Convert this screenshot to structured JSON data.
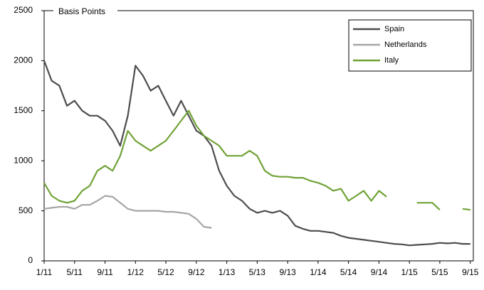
{
  "chart_data": {
    "type": "line",
    "y_label": "Basis Points",
    "x": [
      2011,
      2011.083,
      2011.167,
      2011.25,
      2011.333,
      2011.417,
      2011.5,
      2011.583,
      2011.667,
      2011.75,
      2011.833,
      2011.917,
      2012,
      2012.083,
      2012.167,
      2012.25,
      2012.333,
      2012.417,
      2012.5,
      2012.583,
      2012.667,
      2012.75,
      2012.833,
      2012.917,
      2013,
      2013.083,
      2013.167,
      2013.25,
      2013.333,
      2013.417,
      2013.5,
      2013.583,
      2013.667,
      2013.75,
      2013.833,
      2013.917,
      2014,
      2014.083,
      2014.167,
      2014.25,
      2014.333,
      2014.417,
      2014.5,
      2014.583,
      2014.667,
      2014.75,
      2014.833,
      2014.917,
      2015,
      2015.083,
      2015.167,
      2015.25,
      2015.333,
      2015.417,
      2015.5,
      2015.583,
      2015.667
    ],
    "series": [
      {
        "name": "Spain",
        "color": "#4d4d4d",
        "values": [
          2000,
          1800,
          1750,
          1550,
          1600,
          1500,
          1450,
          1450,
          1400,
          1300,
          1150,
          1450,
          1950,
          1850,
          1700,
          1750,
          1600,
          1450,
          1600,
          1450,
          1300,
          1250,
          1150,
          900,
          750,
          650,
          600,
          520,
          480,
          500,
          480,
          500,
          450,
          350,
          320,
          300,
          300,
          290,
          280,
          250,
          230,
          220,
          210,
          200,
          190,
          180,
          170,
          165,
          155,
          160,
          165,
          170,
          180,
          175,
          180,
          170,
          170
        ]
      },
      {
        "name": "Netherlands",
        "color": "#a6a6a6",
        "values": [
          520,
          530,
          540,
          540,
          520,
          560,
          560,
          600,
          650,
          640,
          580,
          520,
          500,
          500,
          500,
          500,
          490,
          490,
          480,
          470,
          420,
          340,
          330,
          null,
          null,
          null,
          null,
          null,
          null,
          null,
          null,
          null,
          null,
          null,
          null,
          null,
          null,
          null,
          null,
          null,
          null,
          null,
          null,
          null,
          null,
          null,
          null,
          null,
          null,
          null,
          null,
          null,
          null,
          null,
          null,
          null,
          null
        ]
      },
      {
        "name": "Italy",
        "color": "#70a236",
        "values": [
          780,
          650,
          600,
          580,
          600,
          700,
          750,
          900,
          950,
          900,
          1050,
          1300,
          1200,
          1150,
          1100,
          1150,
          1200,
          1300,
          1400,
          1500,
          1350,
          1250,
          1200,
          1150,
          1050,
          1050,
          1050,
          1100,
          1050,
          900,
          850,
          840,
          840,
          830,
          830,
          800,
          780,
          750,
          700,
          720,
          600,
          650,
          700,
          600,
          700,
          640,
          null,
          null,
          null,
          580,
          580,
          580,
          510,
          null,
          null,
          520,
          510
        ]
      }
    ],
    "xlim": [
      2011,
      2015.7
    ],
    "xticks": [
      {
        "value": 2011,
        "label": "1/11"
      },
      {
        "value": 2011.333,
        "label": "5/11"
      },
      {
        "value": 2011.667,
        "label": "9/11"
      },
      {
        "value": 2012,
        "label": "1/12"
      },
      {
        "value": 2012.333,
        "label": "5/12"
      },
      {
        "value": 2012.667,
        "label": "9/12"
      },
      {
        "value": 2013,
        "label": "1/13"
      },
      {
        "value": 2013.333,
        "label": "5/13"
      },
      {
        "value": 2013.667,
        "label": "9/13"
      },
      {
        "value": 2014,
        "label": "1/14"
      },
      {
        "value": 2014.333,
        "label": "5/14"
      },
      {
        "value": 2014.667,
        "label": "9/14"
      },
      {
        "value": 2015,
        "label": "1/15"
      },
      {
        "value": 2015.333,
        "label": "5/15"
      },
      {
        "value": 2015.667,
        "label": "9/15"
      }
    ],
    "ylim": [
      0,
      2500
    ],
    "yticks": [
      0,
      500,
      1000,
      1500,
      2000,
      2500
    ],
    "legend": "top-right"
  }
}
